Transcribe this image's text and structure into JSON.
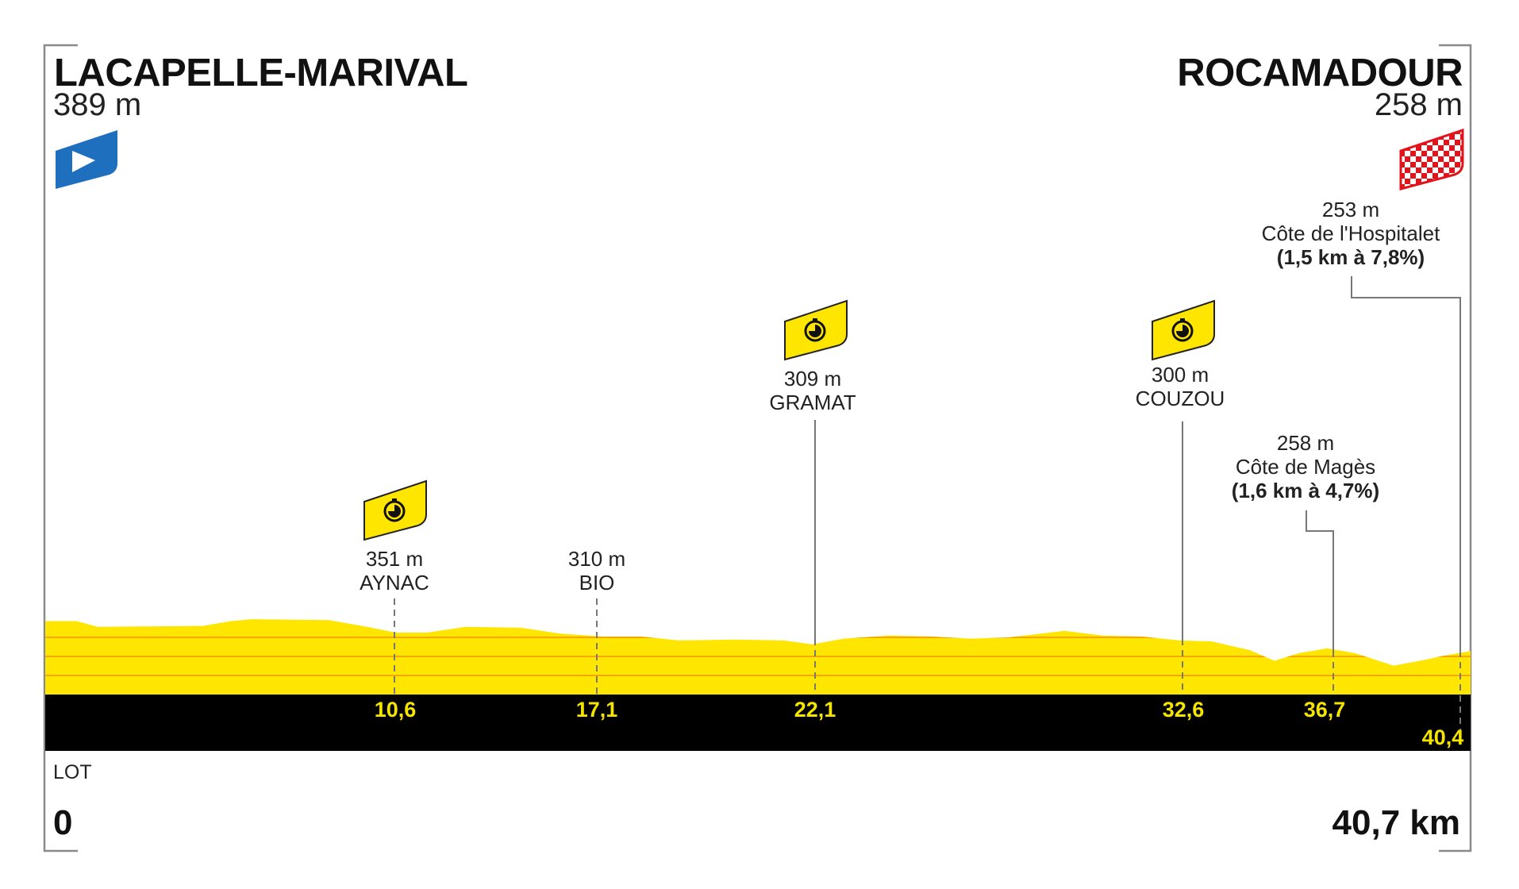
{
  "start": {
    "name": "LACAPELLE-MARIVAL",
    "altitude": "389 m",
    "icon": "start-flag-icon",
    "color": "#1f6fbf"
  },
  "finish": {
    "name": "ROCAMADOUR",
    "altitude": "258 m",
    "icon": "checkered-finish-flag-icon",
    "color": "#e3131b"
  },
  "department": "LOT",
  "distance_start": "0",
  "distance_total": "40,7 km",
  "points": [
    {
      "altitude": "351 m",
      "name": "AYNAC",
      "km": "10,6",
      "type": "time-check",
      "icon": "stopwatch-icon"
    },
    {
      "altitude": "310 m",
      "name": "BIO",
      "km": "17,1",
      "type": "place"
    },
    {
      "altitude": "309 m",
      "name": "GRAMAT",
      "km": "22,1",
      "type": "time-check",
      "icon": "stopwatch-icon"
    },
    {
      "altitude": "300 m",
      "name": "COUZOU",
      "km": "32,6",
      "type": "time-check",
      "icon": "stopwatch-icon"
    },
    {
      "altitude": "258 m",
      "name": "Côte de Magès",
      "detail": "(1,6 km à 4,7%)",
      "km": "36,7",
      "type": "climb"
    },
    {
      "altitude": "253 m",
      "name": "Côte de l'Hospitalet",
      "detail": "(1,5 km à 7,8%)",
      "km": "40,4",
      "type": "climb"
    }
  ],
  "colors": {
    "profile": "#ffe600",
    "profile_lines": "#f5a800",
    "band": "#000000",
    "km_text": "#f5e400",
    "sprint_badge": "#ffe600"
  },
  "chart_data": {
    "type": "area",
    "xlabel": "",
    "ylabel": "",
    "xlim": [
      0,
      40.7
    ],
    "grid": false,
    "x": [
      0,
      0.9,
      1.5,
      4.5,
      5.3,
      5.9,
      8.1,
      9.2,
      10.0,
      10.9,
      12.0,
      13.6,
      14.7,
      15.9,
      17.0,
      18.1,
      19.7,
      21.1,
      21.9,
      22.8,
      24.1,
      25.3,
      26.4,
      27.5,
      29.1,
      30.2,
      31.3,
      32.4,
      33.3,
      34.4,
      35.1,
      35.8,
      36.6,
      37.4,
      38.5,
      39.4,
      39.9,
      40.7
    ],
    "y": [
      389,
      389,
      364,
      368,
      389,
      397,
      393,
      364,
      339,
      339,
      364,
      360,
      335,
      322,
      322,
      305,
      309,
      305,
      288,
      313,
      326,
      322,
      313,
      318,
      347,
      326,
      322,
      305,
      301,
      263,
      217,
      250,
      271,
      250,
      196,
      221,
      238,
      259
    ]
  }
}
